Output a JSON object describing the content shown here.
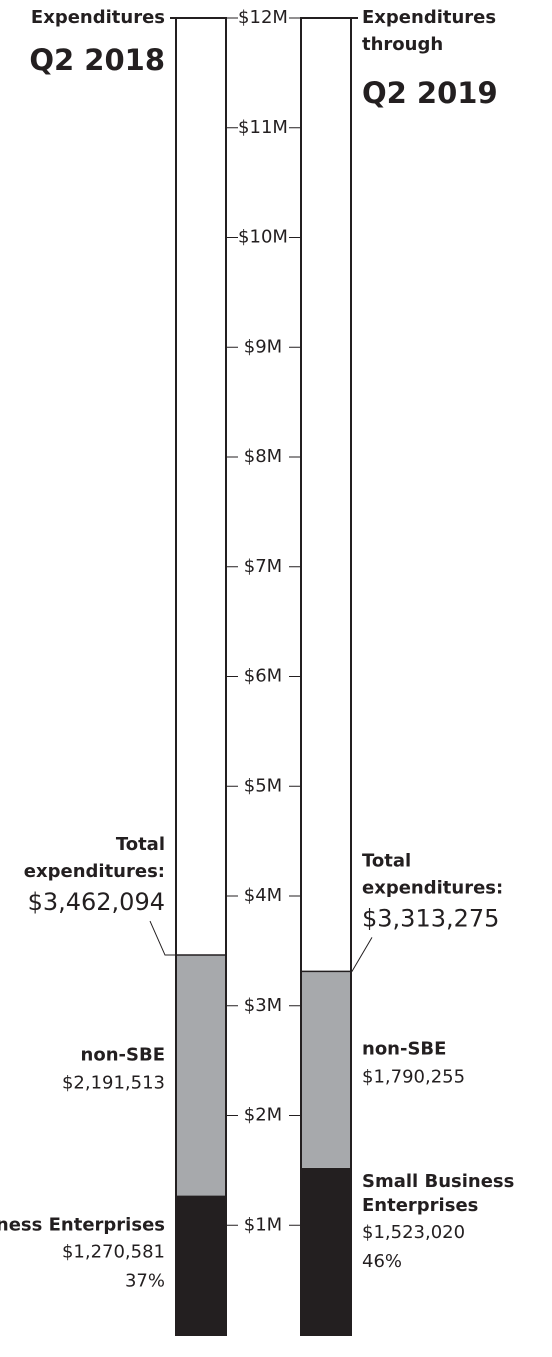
{
  "chart_data": {
    "type": "stacked-bar",
    "bars": [
      {
        "heading": [
          "Expenditures"
        ],
        "period": "Q2 2018"
      },
      {
        "heading": [
          "Expenditures",
          "through"
        ],
        "period": "Q2 2019"
      }
    ],
    "series": [
      {
        "name": "Small Business Enterprises",
        "color": "#231f20",
        "values": [
          1270581,
          1523020
        ],
        "value_labels": [
          "$1,270,581",
          "$1,523,020"
        ],
        "shares": [
          37,
          46
        ],
        "share_labels": [
          "37%",
          "46%"
        ]
      },
      {
        "name": "non-SBE",
        "color": "#a7a9ac",
        "values": [
          2191513,
          1790255
        ],
        "value_labels": [
          "$2,191,513",
          "$1,790,255"
        ]
      }
    ],
    "totals": {
      "label": [
        "Total",
        "expenditures:"
      ],
      "values": [
        3462094,
        3313275
      ],
      "value_labels": [
        "$3,462,094",
        "$3,313,275"
      ]
    },
    "ylim": [
      0,
      12000000
    ],
    "yticks": [
      {
        "value": 1000000,
        "label": "$1M"
      },
      {
        "value": 2000000,
        "label": "$2M"
      },
      {
        "value": 3000000,
        "label": "$3M"
      },
      {
        "value": 4000000,
        "label": "$4M"
      },
      {
        "value": 5000000,
        "label": "$5M"
      },
      {
        "value": 6000000,
        "label": "$6M"
      },
      {
        "value": 7000000,
        "label": "$7M"
      },
      {
        "value": 8000000,
        "label": "$8M"
      },
      {
        "value": 9000000,
        "label": "$9M"
      },
      {
        "value": 10000000,
        "label": "$10M"
      },
      {
        "value": 11000000,
        "label": "$11M"
      },
      {
        "value": 12000000,
        "label": "$12M"
      }
    ]
  }
}
